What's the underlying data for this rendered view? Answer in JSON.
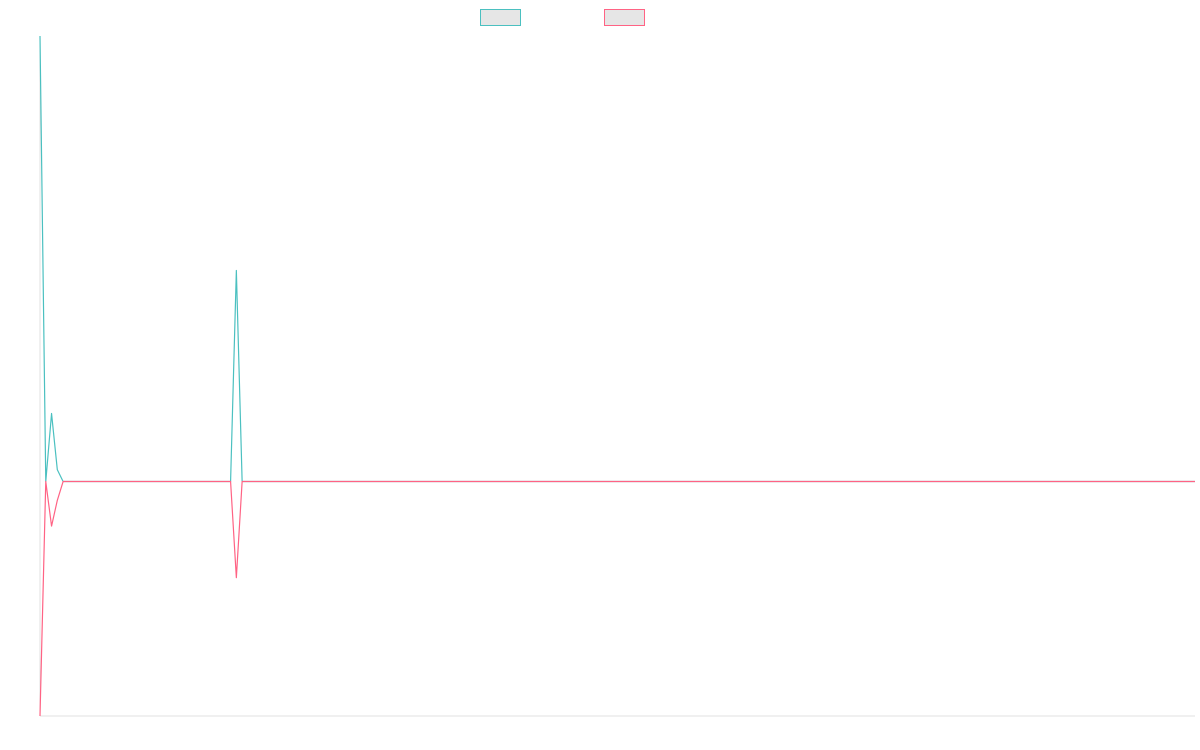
{
  "chart_data": {
    "type": "line",
    "title": "",
    "xlabel": "",
    "ylabel": "",
    "legend": "top-center",
    "grid": false,
    "x_range": [
      0,
      200
    ],
    "ylim": [
      -1.0,
      1.9
    ],
    "series": [
      {
        "color": "#4bc0c0",
        "x": [
          0,
          1,
          2,
          3,
          4,
          5,
          33,
          34,
          35,
          36,
          200
        ],
        "y": [
          1.9,
          0.0,
          0.29,
          0.05,
          0.0,
          0.0,
          0.0,
          0.9,
          0.0,
          0.0,
          0.0
        ]
      },
      {
        "color": "#ff6384",
        "x": [
          0,
          1,
          2,
          3,
          4,
          5,
          33,
          34,
          35,
          36,
          200
        ],
        "y": [
          -1.0,
          0.0,
          -0.19,
          -0.08,
          0.0,
          0.0,
          0.0,
          -0.41,
          0.0,
          0.0,
          0.0
        ]
      }
    ]
  }
}
